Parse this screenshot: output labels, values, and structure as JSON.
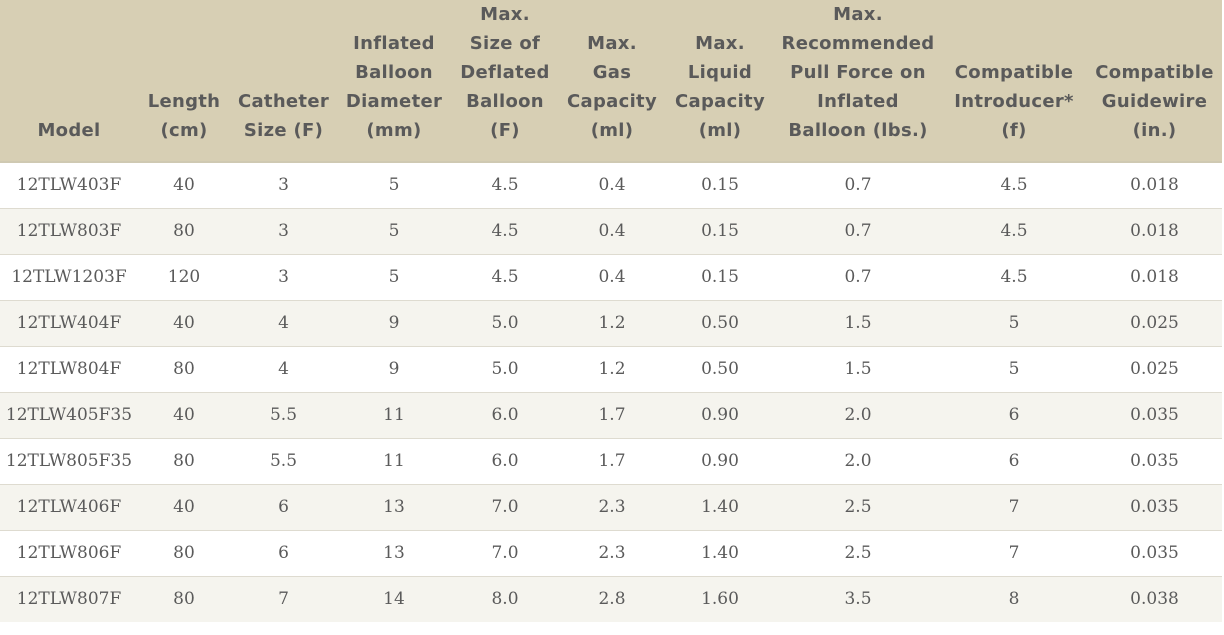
{
  "table": {
    "headers": [
      "Model",
      "Length\n(cm)",
      "Catheter\nSize (F)",
      "Inflated\nBalloon\nDiameter\n(mm)",
      "Max.\nSize of\nDeflated\nBalloon\n(F)",
      "Max.\nGas\nCapacity\n(ml)",
      "Max.\nLiquid\nCapacity\n(ml)",
      "Max.\nRecommended\nPull Force on\nInflated\nBalloon (lbs.)",
      "Compatible\nIntroducer*\n(f)",
      "Compatible\nGuidewire\n(in.)"
    ],
    "rows": [
      [
        "12TLW403F",
        "40",
        "3",
        "5",
        "4.5",
        "0.4",
        "0.15",
        "0.7",
        "4.5",
        "0.018"
      ],
      [
        "12TLW803F",
        "80",
        "3",
        "5",
        "4.5",
        "0.4",
        "0.15",
        "0.7",
        "4.5",
        "0.018"
      ],
      [
        "12TLW1203F",
        "120",
        "3",
        "5",
        "4.5",
        "0.4",
        "0.15",
        "0.7",
        "4.5",
        "0.018"
      ],
      [
        "12TLW404F",
        "40",
        "4",
        "9",
        "5.0",
        "1.2",
        "0.50",
        "1.5",
        "5",
        "0.025"
      ],
      [
        "12TLW804F",
        "80",
        "4",
        "9",
        "5.0",
        "1.2",
        "0.50",
        "1.5",
        "5",
        "0.025"
      ],
      [
        "12TLW405F35",
        "40",
        "5.5",
        "11",
        "6.0",
        "1.7",
        "0.90",
        "2.0",
        "6",
        "0.035"
      ],
      [
        "12TLW805F35",
        "80",
        "5.5",
        "11",
        "6.0",
        "1.7",
        "0.90",
        "2.0",
        "6",
        "0.035"
      ],
      [
        "12TLW406F",
        "40",
        "6",
        "13",
        "7.0",
        "2.3",
        "1.40",
        "2.5",
        "7",
        "0.035"
      ],
      [
        "12TLW806F",
        "80",
        "6",
        "13",
        "7.0",
        "2.3",
        "1.40",
        "2.5",
        "7",
        "0.035"
      ],
      [
        "12TLW807F",
        "80",
        "7",
        "14",
        "8.0",
        "2.8",
        "1.60",
        "3.5",
        "8",
        "0.038"
      ]
    ]
  },
  "colors": {
    "header_bg": "#d7cfb4",
    "header_text": "#5a5a5a",
    "row_alt_bg": "#f5f4ee",
    "row_bg": "#ffffff",
    "cell_text": "#5a5a5a"
  }
}
